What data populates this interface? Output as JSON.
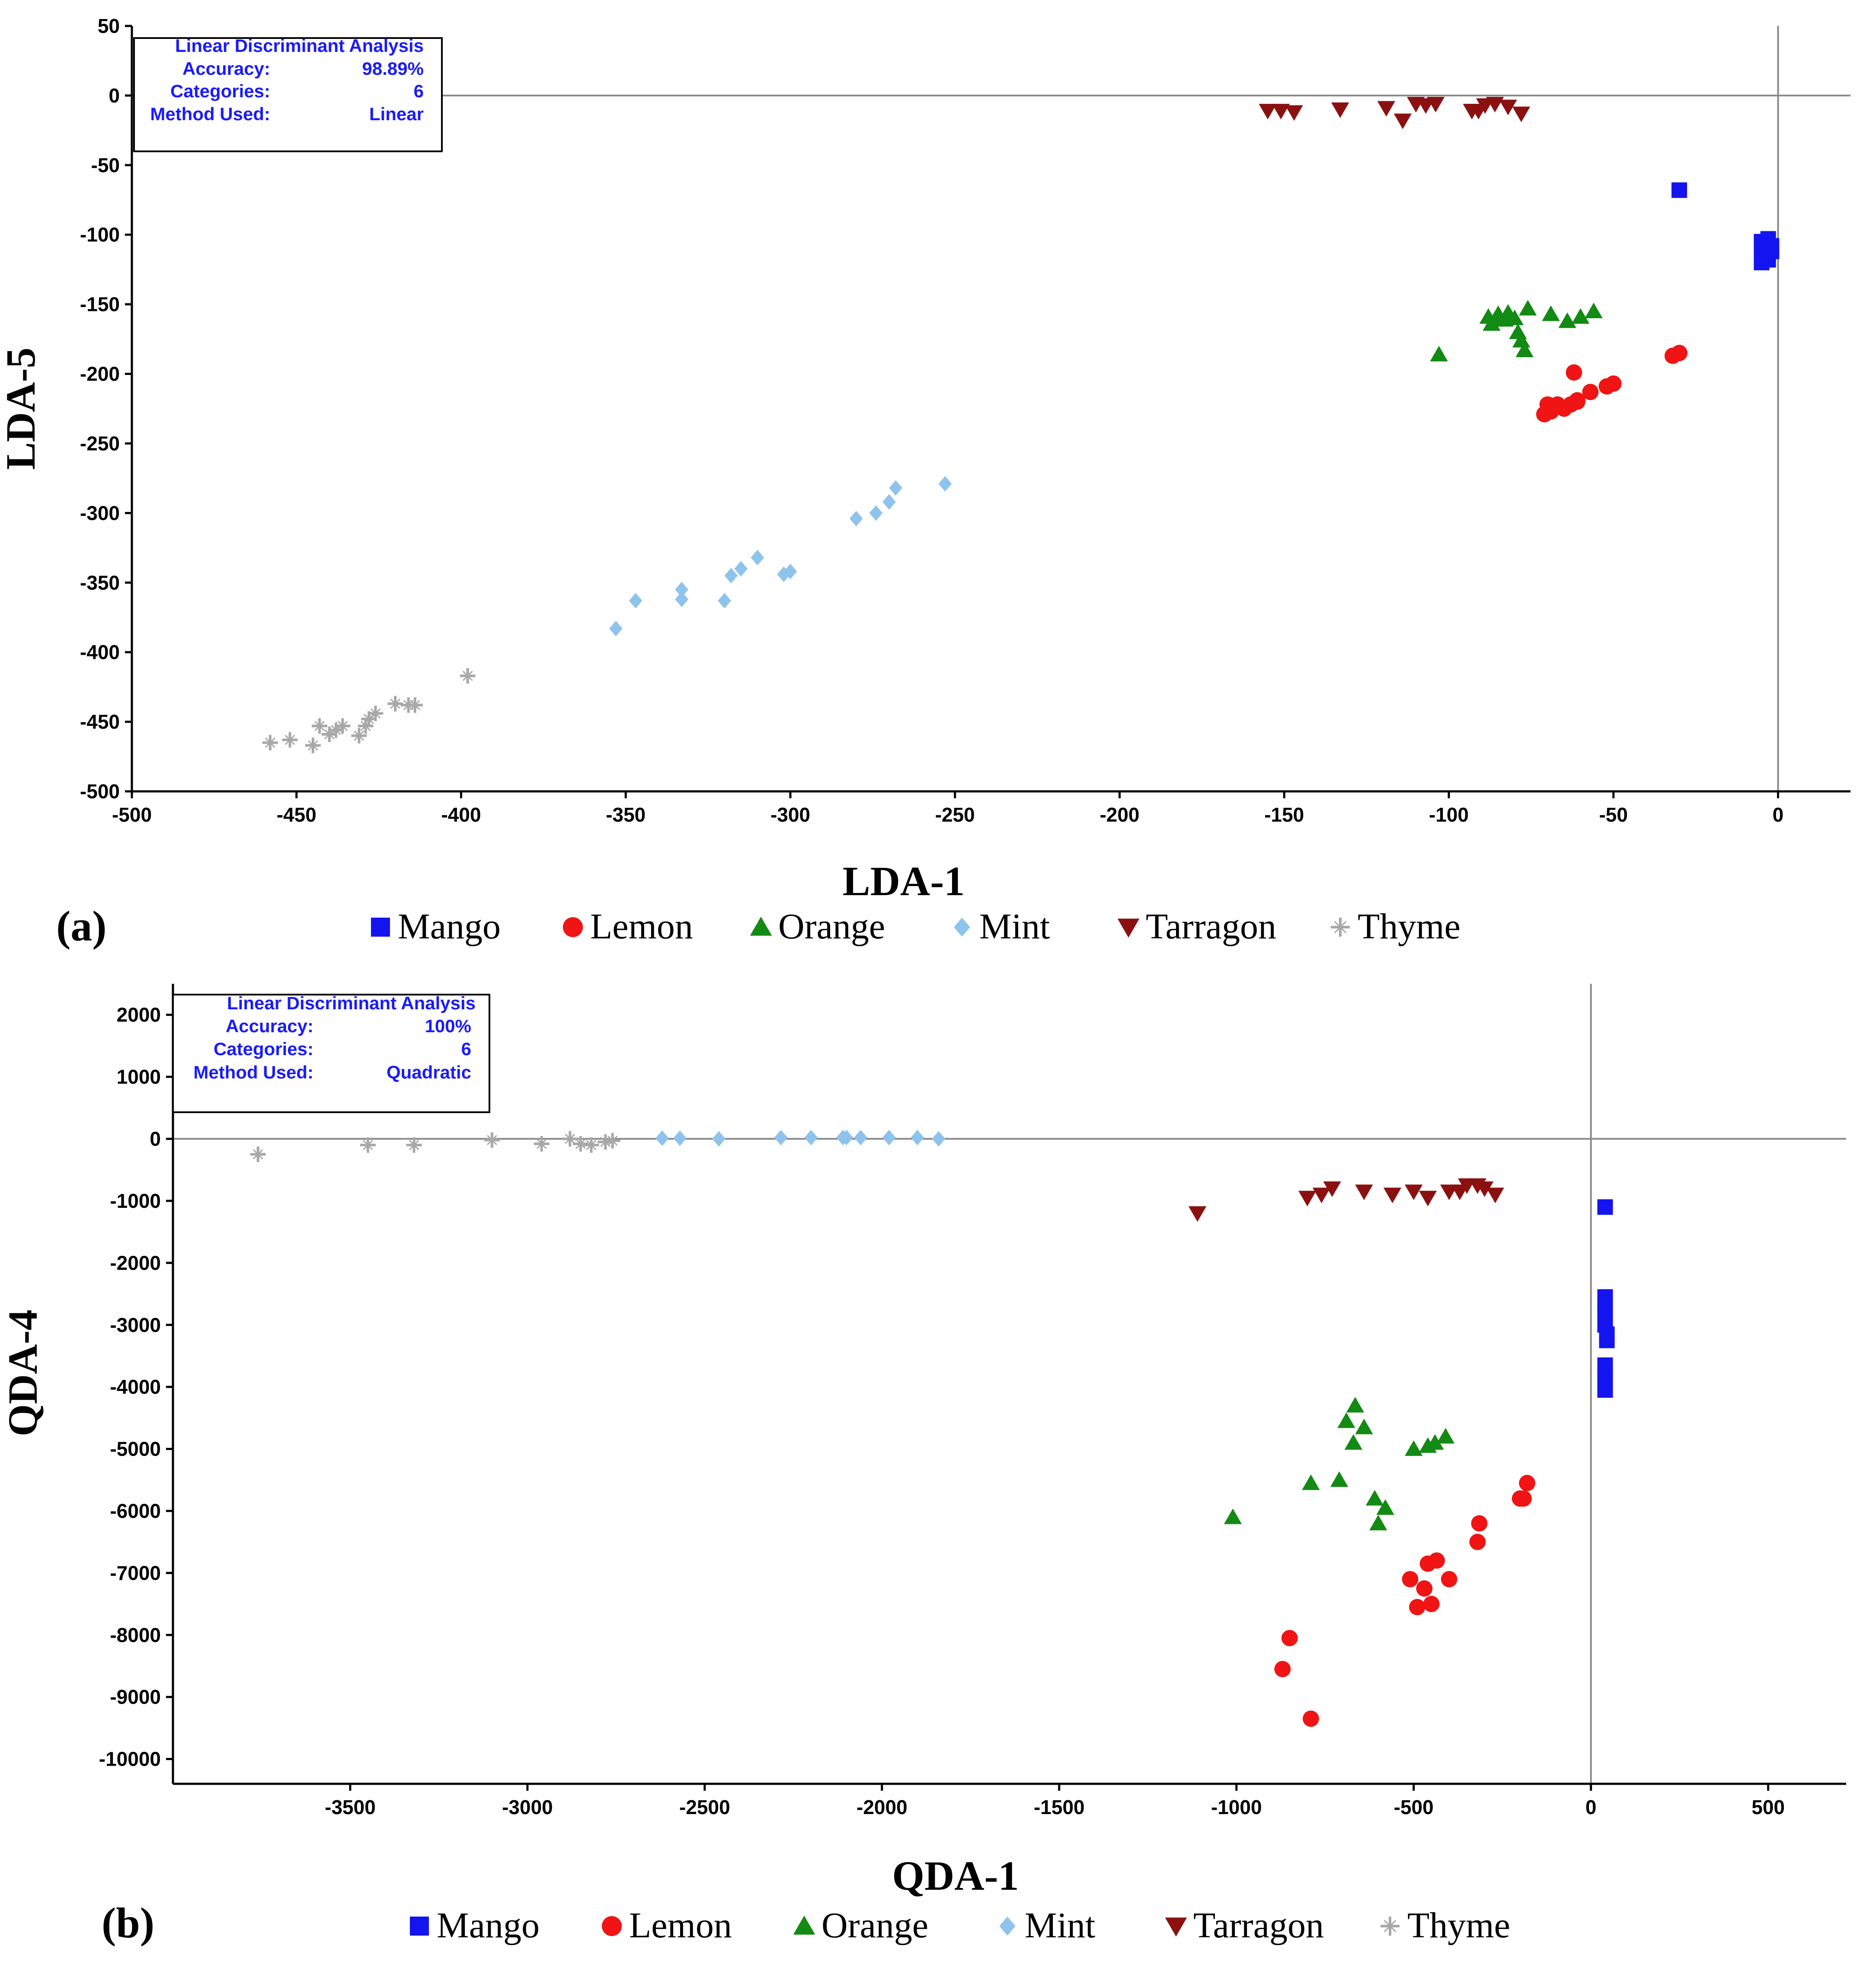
{
  "colors": {
    "Mango": "#1414f0",
    "Lemon": "#f01414",
    "Orange": "#138a13",
    "Mint": "#8ec3ec",
    "Tarragon": "#8b1111",
    "Thyme": "#a8a8a8",
    "info_text": "#1a1aff"
  },
  "legend": [
    {
      "name": "Mango",
      "marker": "square"
    },
    {
      "name": "Lemon",
      "marker": "circle"
    },
    {
      "name": "Orange",
      "marker": "triangle-up"
    },
    {
      "name": "Mint",
      "marker": "diamond"
    },
    {
      "name": "Tarragon",
      "marker": "triangle-down"
    },
    {
      "name": "Thyme",
      "marker": "cross"
    }
  ],
  "chart_data": [
    {
      "type": "scatter",
      "panel_label": "(a)",
      "xlabel": "LDA-1",
      "ylabel": "LDA-5",
      "xlim": [
        -500,
        22
      ],
      "ylim": [
        -500,
        50
      ],
      "xticks": [
        -500,
        -450,
        -400,
        -350,
        -300,
        -250,
        -200,
        -150,
        -100,
        -50,
        0
      ],
      "yticks": [
        50,
        0,
        -50,
        -100,
        -150,
        -200,
        -250,
        -300,
        -350,
        -400,
        -450,
        -500
      ],
      "info_box": {
        "title": "Linear Discriminant Analysis",
        "rows": [
          {
            "label": "Accuracy:",
            "value": "98.89%"
          },
          {
            "label": "Categories:",
            "value": "6"
          },
          {
            "label": "Method Used:",
            "value": "Linear"
          }
        ]
      },
      "series": [
        {
          "name": "Mango",
          "points": [
            [
              -30,
              -68
            ],
            [
              -5,
              -105
            ],
            [
              -3,
              -103
            ],
            [
              -5,
              -110
            ],
            [
              -2,
              -112
            ],
            [
              -4,
              -115
            ],
            [
              -5,
              -120
            ],
            [
              -2,
              -108
            ],
            [
              -3,
              -118
            ],
            [
              -4,
              -106
            ],
            [
              -3,
              -113
            ]
          ]
        },
        {
          "name": "Lemon",
          "points": [
            [
              -30,
              -185
            ],
            [
              -32,
              -187
            ],
            [
              -50,
              -207
            ],
            [
              -52,
              -209
            ],
            [
              -57,
              -213
            ],
            [
              -62,
              -199
            ],
            [
              -61,
              -219
            ],
            [
              -63,
              -222
            ],
            [
              -65,
              -225
            ],
            [
              -67,
              -222
            ],
            [
              -69,
              -227
            ],
            [
              -70,
              -222
            ],
            [
              -71,
              -229
            ],
            [
              -61,
              -220
            ]
          ]
        },
        {
          "name": "Orange",
          "points": [
            [
              -103,
              -186
            ],
            [
              -77,
              -183
            ],
            [
              -78,
              -176
            ],
            [
              -79,
              -170
            ],
            [
              -80,
              -160
            ],
            [
              -82,
              -156
            ],
            [
              -83,
              -161
            ],
            [
              -85,
              -157
            ],
            [
              -86,
              -161
            ],
            [
              -87,
              -164
            ],
            [
              -88,
              -159
            ],
            [
              -76,
              -153
            ],
            [
              -69,
              -157
            ],
            [
              -64,
              -162
            ],
            [
              -60,
              -159
            ],
            [
              -56,
              -155
            ]
          ]
        },
        {
          "name": "Mint",
          "points": [
            [
              -253,
              -279
            ],
            [
              -268,
              -282
            ],
            [
              -270,
              -292
            ],
            [
              -274,
              -300
            ],
            [
              -280,
              -304
            ],
            [
              -300,
              -342
            ],
            [
              -302,
              -344
            ],
            [
              -310,
              -332
            ],
            [
              -315,
              -340
            ],
            [
              -318,
              -345
            ],
            [
              -320,
              -363
            ],
            [
              -333,
              -355
            ],
            [
              -333,
              -362
            ],
            [
              -347,
              -363
            ],
            [
              -353,
              -383
            ]
          ]
        },
        {
          "name": "Tarragon",
          "points": [
            [
              -155,
              -11
            ],
            [
              -151,
              -11
            ],
            [
              -147,
              -12
            ],
            [
              -133,
              -10
            ],
            [
              -119,
              -9
            ],
            [
              -114,
              -18
            ],
            [
              -110,
              -6
            ],
            [
              -107,
              -7
            ],
            [
              -104,
              -6
            ],
            [
              -93,
              -11
            ],
            [
              -91,
              -11
            ],
            [
              -89,
              -7
            ],
            [
              -86,
              -6
            ],
            [
              -82,
              -8
            ],
            [
              -78,
              -13
            ]
          ]
        },
        {
          "name": "Thyme",
          "points": [
            [
              -398,
              -417
            ],
            [
              -414,
              -438
            ],
            [
              -416,
              -438
            ],
            [
              -420,
              -437
            ],
            [
              -426,
              -444
            ],
            [
              -428,
              -448
            ],
            [
              -429,
              -453
            ],
            [
              -431,
              -460
            ],
            [
              -436,
              -453
            ],
            [
              -438,
              -456
            ],
            [
              -440,
              -459
            ],
            [
              -443,
              -453
            ],
            [
              -445,
              -467
            ],
            [
              -452,
              -463
            ],
            [
              -458,
              -465
            ]
          ]
        }
      ]
    },
    {
      "type": "scatter",
      "panel_label": "(b)",
      "xlabel": "QDA-1",
      "ylabel": "QDA-4",
      "xlim": [
        -4000,
        720
      ],
      "ylim": [
        -10400,
        2500
      ],
      "xticks": [
        -3500,
        -3000,
        -2500,
        -2000,
        -1500,
        -1000,
        -500,
        0,
        500
      ],
      "yticks": [
        2000,
        1000,
        0,
        -1000,
        -2000,
        -3000,
        -4000,
        -5000,
        -6000,
        -7000,
        -8000,
        -9000,
        -10000
      ],
      "info_box": {
        "title": "Linear Discriminant Analysis",
        "rows": [
          {
            "label": "Accuracy:",
            "value": "100%"
          },
          {
            "label": "Categories:",
            "value": "6"
          },
          {
            "label": "Method Used:",
            "value": "Quadratic"
          }
        ]
      },
      "series": [
        {
          "name": "Mango",
          "points": [
            [
              40,
              -1100
            ],
            [
              40,
              -2550
            ],
            [
              40,
              -2650
            ],
            [
              40,
              -2750
            ],
            [
              40,
              -2850
            ],
            [
              40,
              -3000
            ],
            [
              45,
              -3150
            ],
            [
              45,
              -3250
            ],
            [
              40,
              -3650
            ],
            [
              40,
              -3800
            ],
            [
              40,
              -3950
            ],
            [
              40,
              -4050
            ]
          ]
        },
        {
          "name": "Lemon",
          "points": [
            [
              -870,
              -8550
            ],
            [
              -850,
              -8050
            ],
            [
              -790,
              -9350
            ],
            [
              -510,
              -7100
            ],
            [
              -490,
              -7550
            ],
            [
              -470,
              -7250
            ],
            [
              -460,
              -6850
            ],
            [
              -450,
              -7500
            ],
            [
              -435,
              -6800
            ],
            [
              -400,
              -7100
            ],
            [
              -320,
              -6500
            ],
            [
              -315,
              -6200
            ],
            [
              -200,
              -5800
            ],
            [
              -190,
              -5800
            ],
            [
              -180,
              -5550
            ]
          ]
        },
        {
          "name": "Orange",
          "points": [
            [
              -1010,
              -6100
            ],
            [
              -790,
              -5550
            ],
            [
              -710,
              -5500
            ],
            [
              -690,
              -4550
            ],
            [
              -670,
              -4900
            ],
            [
              -665,
              -4300
            ],
            [
              -640,
              -4650
            ],
            [
              -610,
              -5800
            ],
            [
              -600,
              -6200
            ],
            [
              -580,
              -5950
            ],
            [
              -500,
              -5000
            ],
            [
              -460,
              -4950
            ],
            [
              -440,
              -4900
            ],
            [
              -410,
              -4800
            ]
          ]
        },
        {
          "name": "Mint",
          "points": [
            [
              -2620,
              10
            ],
            [
              -2570,
              10
            ],
            [
              -2460,
              0
            ],
            [
              -2285,
              20
            ],
            [
              -2200,
              20
            ],
            [
              -2110,
              20
            ],
            [
              -2100,
              20
            ],
            [
              -2060,
              20
            ],
            [
              -1980,
              20
            ],
            [
              -1900,
              20
            ],
            [
              -1840,
              0
            ]
          ]
        },
        {
          "name": "Tarragon",
          "points": [
            [
              -1110,
              -1200
            ],
            [
              -800,
              -950
            ],
            [
              -760,
              -900
            ],
            [
              -730,
              -800
            ],
            [
              -640,
              -850
            ],
            [
              -560,
              -900
            ],
            [
              -500,
              -850
            ],
            [
              -460,
              -950
            ],
            [
              -400,
              -850
            ],
            [
              -370,
              -850
            ],
            [
              -350,
              -750
            ],
            [
              -320,
              -750
            ],
            [
              -300,
              -800
            ],
            [
              -270,
              -900
            ]
          ]
        },
        {
          "name": "Thyme",
          "points": [
            [
              -3760,
              -250
            ],
            [
              -3450,
              -100
            ],
            [
              -3320,
              -100
            ],
            [
              -3100,
              -20
            ],
            [
              -2960,
              -80
            ],
            [
              -2880,
              0
            ],
            [
              -2850,
              -80
            ],
            [
              -2820,
              -100
            ],
            [
              -2780,
              -50
            ],
            [
              -2760,
              -30
            ]
          ]
        }
      ]
    }
  ]
}
